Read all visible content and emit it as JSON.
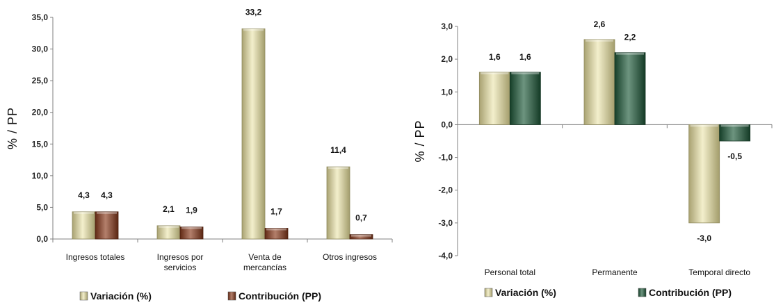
{
  "colors": {
    "variacion": "#d6d1a2",
    "contribucion_left": "#8a3a1c",
    "contribucion_right": "#1f5a3a",
    "axis": "#808080"
  },
  "chart_data": [
    {
      "type": "bar",
      "ylabel": "% / PP",
      "ylim": [
        0,
        35
      ],
      "yticks": [
        "0,0",
        "5,0",
        "10,0",
        "15,0",
        "20,0",
        "25,0",
        "30,0",
        "35,0"
      ],
      "categories": [
        [
          "Ingresos totales"
        ],
        [
          "Ingresos por",
          "servicios"
        ],
        [
          "Venta de",
          "mercancías"
        ],
        [
          "Otros ingresos"
        ]
      ],
      "series": [
        {
          "name": "Variación (%)",
          "values": [
            4.3,
            2.1,
            33.2,
            11.4
          ],
          "labels": [
            "4,3",
            "2,1",
            "33,2",
            "11,4"
          ]
        },
        {
          "name": "Contribución (PP)",
          "values": [
            4.3,
            1.9,
            1.7,
            0.7
          ],
          "labels": [
            "4,3",
            "1,9",
            "1,7",
            "0,7"
          ]
        }
      ],
      "legend": "bottom"
    },
    {
      "type": "bar",
      "ylabel": "% / PP",
      "ylim": [
        -4,
        3
      ],
      "yticks": [
        "-4,0",
        "-3,0",
        "-2,0",
        "-1,0",
        "0,0",
        "1,0",
        "2,0",
        "3,0"
      ],
      "categories": [
        [
          "Personal total"
        ],
        [
          "Permanente"
        ],
        [
          "Temporal directo"
        ]
      ],
      "series": [
        {
          "name": "Variación (%)",
          "values": [
            1.6,
            2.6,
            -3.0
          ],
          "labels": [
            "1,6",
            "2,6",
            "-3,0"
          ]
        },
        {
          "name": "Contribución (PP)",
          "values": [
            1.6,
            2.2,
            -0.5
          ],
          "labels": [
            "1,6",
            "2,2",
            "-0,5"
          ]
        }
      ],
      "legend": "bottom"
    }
  ]
}
